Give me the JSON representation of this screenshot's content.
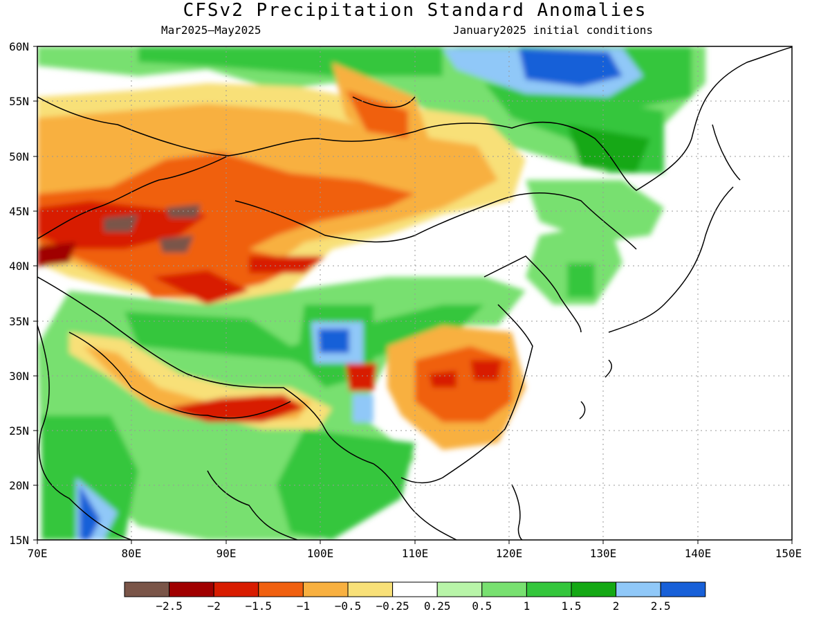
{
  "title": "CFSv2 Precipitation Standard Anomalies",
  "subtitle_left": "Mar2025–May2025",
  "subtitle_right": "January2025 initial conditions",
  "lat_labels": [
    "60N",
    "55N",
    "50N",
    "45N",
    "40N",
    "35N",
    "30N",
    "25N",
    "20N",
    "15N"
  ],
  "lon_labels": [
    "70E",
    "80E",
    "90E",
    "100E",
    "110E",
    "120E",
    "130E",
    "140E",
    "150E"
  ],
  "colorbar": {
    "colors": [
      "#7a5548",
      "#a00000",
      "#d81c00",
      "#f06010",
      "#f8b040",
      "#f8e078",
      "#ffffff",
      "#b8f4a8",
      "#78e070",
      "#34c63c",
      "#14a814",
      "#90c8f8",
      "#1860d8"
    ],
    "labels": [
      "−2.5",
      "−2",
      "−1.5",
      "−1",
      "−0.5",
      "−0.25",
      "0.25",
      "0.5",
      "1",
      "1.5",
      "2",
      "2.5"
    ]
  }
}
